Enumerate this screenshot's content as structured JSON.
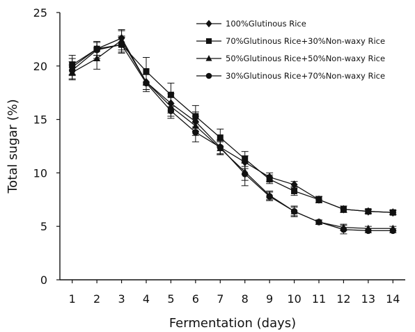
{
  "chart_data": {
    "type": "line",
    "title": "",
    "xlabel": "Fermentation (days)",
    "ylabel": "Total sugar  (%)",
    "x": [
      1,
      2,
      3,
      4,
      5,
      6,
      7,
      8,
      9,
      10,
      11,
      12,
      13,
      14
    ],
    "x_ticks": [
      "1",
      "2",
      "3",
      "4",
      "5",
      "6",
      "7",
      "8",
      "9",
      "10",
      "11",
      "12",
      "13",
      "14"
    ],
    "y_ticks": [
      "0",
      "5",
      "10",
      "15",
      "20",
      "25"
    ],
    "ylim": [
      0,
      25
    ],
    "xlim": [
      0.5,
      14.5
    ],
    "grid": false,
    "legend_position": "top-right",
    "series": [
      {
        "name": "100%Glutinous Rice",
        "marker": "diamond",
        "values": [
          19.9,
          21.6,
          22.6,
          18.5,
          16.5,
          14.8,
          12.4,
          11.0,
          9.6,
          8.9,
          7.5,
          6.6,
          6.4,
          6.3
        ],
        "errors": [
          0.8,
          0.6,
          0.8,
          0.7,
          0.9,
          0.9,
          0.7,
          0.6,
          0.4,
          0.3,
          0.3,
          0.3,
          0.2,
          0.2
        ]
      },
      {
        "name": "70%Glutinous Rice+30%Non-waxy Rice",
        "marker": "square",
        "values": [
          20.1,
          21.6,
          22.0,
          19.5,
          17.3,
          15.3,
          13.3,
          11.3,
          9.4,
          8.3,
          7.5,
          6.6,
          6.4,
          6.3
        ],
        "errors": [
          0.9,
          0.6,
          0.8,
          1.3,
          1.1,
          1.0,
          0.8,
          0.7,
          0.4,
          0.4,
          0.3,
          0.3,
          0.2,
          0.2
        ]
      },
      {
        "name": "50%Glutinous Rice+50%Non-waxy Rice",
        "marker": "triangle",
        "values": [
          19.4,
          20.7,
          22.4,
          18.5,
          16.2,
          14.4,
          12.3,
          10.1,
          7.9,
          6.4,
          5.4,
          4.9,
          4.8,
          4.8
        ],
        "errors": [
          0.7,
          1.0,
          0.9,
          0.7,
          0.9,
          0.9,
          0.6,
          0.8,
          0.4,
          0.4,
          0.2,
          0.3,
          0.2,
          0.2
        ]
      },
      {
        "name": "30%Glutinous Rice+70%Non-waxy Rice",
        "marker": "circle",
        "values": [
          19.6,
          21.5,
          22.0,
          18.4,
          15.8,
          13.8,
          12.4,
          9.9,
          7.8,
          6.4,
          5.4,
          4.7,
          4.6,
          4.6
        ],
        "errors": [
          0.8,
          0.8,
          0.7,
          0.8,
          0.7,
          0.9,
          0.6,
          1.1,
          0.4,
          0.5,
          0.2,
          0.4,
          0.2,
          0.2
        ]
      }
    ],
    "colors": {
      "line": "#111111",
      "marker": "#111111",
      "background": "#ffffff"
    }
  }
}
